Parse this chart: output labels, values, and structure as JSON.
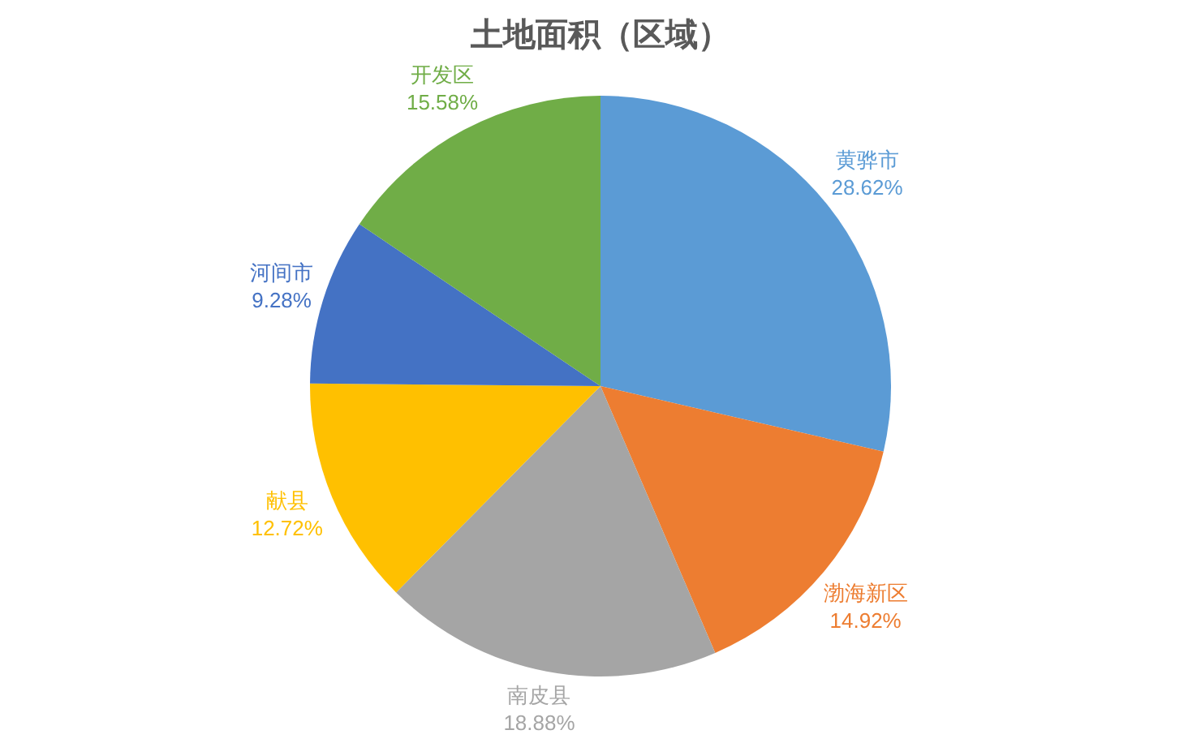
{
  "chart_data": {
    "type": "pie",
    "title": "土地面积（区域）",
    "categories": [
      "黄骅市",
      "渤海新区",
      "南皮县",
      "献县",
      "河间市",
      "开发区"
    ],
    "values": [
      28.62,
      14.92,
      18.88,
      12.72,
      9.28,
      15.58
    ],
    "value_labels": [
      "28.62%",
      "14.92%",
      "18.88%",
      "12.72%",
      "9.28%",
      "15.58%"
    ],
    "colors": [
      "#5b9bd5",
      "#ed7d31",
      "#a5a5a5",
      "#ffc000",
      "#4472c4",
      "#70ad47"
    ]
  }
}
